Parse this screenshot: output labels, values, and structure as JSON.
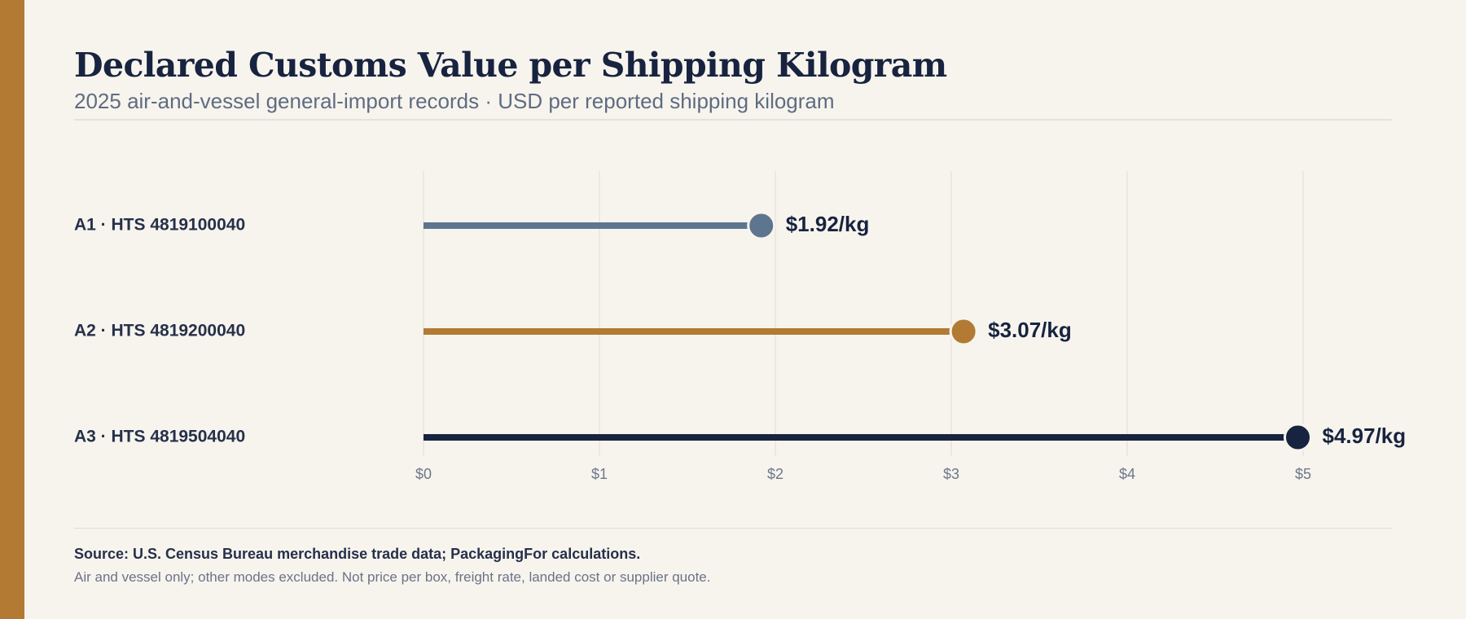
{
  "colors": {
    "accent": "#b27a33",
    "background": "#f7f4ee",
    "text": "#17233f"
  },
  "header": {
    "title": "Declared Customs Value per Shipping Kilogram",
    "subtitle": "2025 air-and-vessel general-import records · USD per reported shipping kilogram"
  },
  "footer": {
    "source": "Source: U.S. Census Bureau merchandise trade data; PackagingFor calculations.",
    "note": "Air and vessel only; other modes excluded. Not price per box, freight rate, landed cost or supplier quote."
  },
  "chart_data": {
    "type": "bar",
    "orientation": "horizontal",
    "style": "lollipop",
    "title": "Declared Customs Value per Shipping Kilogram",
    "subtitle": "2025 air-and-vessel general-import records · USD per reported shipping kilogram",
    "categories": [
      "A1 · HTS 4819100040",
      "A2 · HTS 4819200040",
      "A3 · HTS 4819504040"
    ],
    "values": [
      1.92,
      3.07,
      4.97
    ],
    "value_labels": [
      "$1.92/kg",
      "$3.07/kg",
      "$4.97/kg"
    ],
    "colors": [
      "#5d758e",
      "#b27a33",
      "#17233f"
    ],
    "xlim": [
      0,
      5
    ],
    "xticks": [
      0,
      1,
      2,
      3,
      4,
      5
    ],
    "xtick_labels": [
      "$0",
      "$1",
      "$2",
      "$3",
      "$4",
      "$5"
    ],
    "xlabel": "",
    "ylabel": "",
    "grid": "vertical"
  }
}
